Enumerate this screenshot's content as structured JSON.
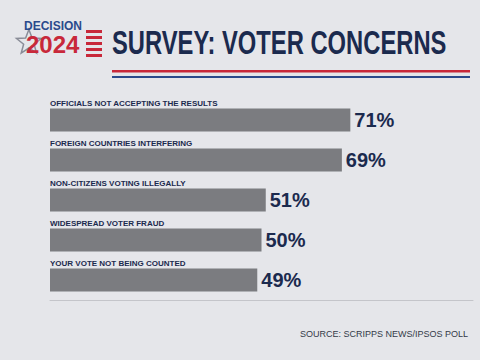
{
  "chart_data": {
    "type": "bar",
    "orientation": "horizontal",
    "title": "SURVEY: VOTER CONCERNS",
    "logo_top": "DECISION",
    "logo_bottom": "2024",
    "source": "SOURCE: SCRIPPS NEWS/IPSOS POLL",
    "categories": [
      "OFFICIALS NOT ACCEPTING THE RESULTS",
      "FOREIGN COUNTRIES INTERFERING",
      "NON-CITIZENS VOTING ILLEGALLY",
      "WIDESPREAD VOTER FRAUD",
      "YOUR VOTE NOT BEING COUNTED"
    ],
    "values": [
      71,
      69,
      51,
      50,
      49
    ],
    "value_labels": [
      "71%",
      "69%",
      "51%",
      "50%",
      "49%"
    ],
    "data_labels": true,
    "color": "#7b7c80",
    "xlim": [
      0,
      100
    ],
    "tick_labels": "y",
    "grid": false
  }
}
